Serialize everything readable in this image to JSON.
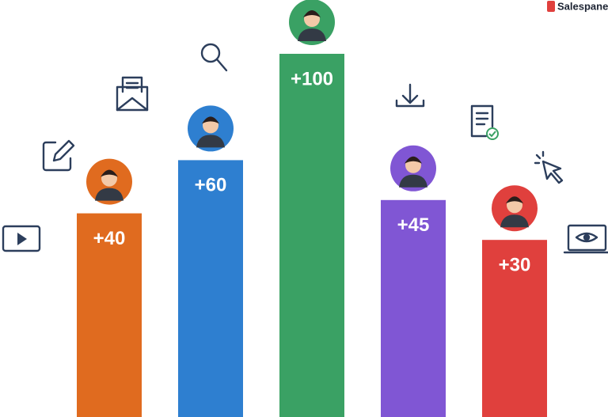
{
  "brand": "Salespanel",
  "chart_data": {
    "type": "bar",
    "values": [
      40,
      60,
      100,
      45,
      30
    ],
    "value_labels": [
      "+40",
      "+60",
      "+100",
      "+45",
      "+30"
    ],
    "colors": [
      "#e06b1f",
      "#2e7fd0",
      "#3aa164",
      "#8056d4",
      "#e0403d"
    ]
  }
}
